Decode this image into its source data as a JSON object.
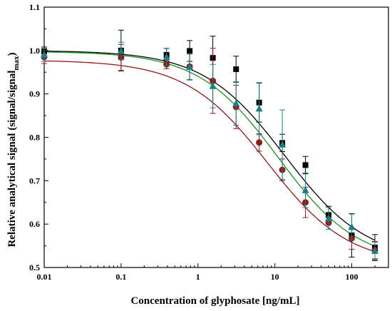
{
  "chart_data": {
    "type": "scatter",
    "xlabel": "Concentration of glyphosate [ng/mL]",
    "ylabel": "Relative analytical signal (signal/signal",
    "ylabel_sub": "max",
    "ylabel_close": ")",
    "xscale": "log",
    "xlim": [
      0.01,
      300
    ],
    "ylim": [
      0.5,
      1.1
    ],
    "xticks": [
      0.01,
      0.1,
      1,
      10,
      100
    ],
    "xtick_labels": [
      "0.01",
      "0.1",
      "1",
      "10",
      "100"
    ],
    "yticks": [
      0.5,
      0.6,
      0.7,
      0.8,
      0.9,
      1.0,
      1.1
    ],
    "ytick_labels": [
      "0.5",
      "0.6",
      "0.7",
      "0.8",
      "0.9",
      "1.0",
      "1.1"
    ],
    "grid": false,
    "series": [
      {
        "marker": "square",
        "color": "#000000",
        "x": [
          0.01,
          0.1,
          0.39,
          0.78,
          1.56,
          3.13,
          6.25,
          12.5,
          25,
          50,
          100,
          200
        ],
        "y": [
          0.998,
          1.0,
          0.99,
          0.999,
          0.983,
          0.957,
          0.88,
          0.787,
          0.736,
          0.621,
          0.574,
          0.546
        ],
        "err": [
          0.01,
          0.047,
          0.015,
          0.024,
          0.05,
          0.03,
          0.045,
          0.02,
          0.02,
          0.02,
          0.05,
          0.03
        ],
        "fit": {
          "top": 1.0,
          "bottom": 0.515,
          "ic50": 13.5,
          "hill": 0.82
        }
      },
      {
        "marker": "circle",
        "color": "#8b1a1a",
        "x": [
          0.01,
          0.1,
          0.39,
          0.78,
          1.56,
          3.13,
          6.25,
          12.5,
          25,
          50,
          100,
          200
        ],
        "y": [
          0.985,
          0.984,
          0.968,
          0.963,
          0.93,
          0.87,
          0.788,
          0.725,
          0.65,
          0.603,
          0.567,
          0.54
        ],
        "err": [
          0.015,
          0.03,
          0.01,
          0.03,
          0.075,
          0.05,
          0.02,
          0.025,
          0.035,
          0.015,
          0.025,
          0.02
        ],
        "fit": {
          "top": 0.978,
          "bottom": 0.505,
          "ic50": 8.0,
          "hill": 0.82
        }
      },
      {
        "marker": "triangle",
        "color": "#1a7f82",
        "x": [
          0.01,
          0.1,
          0.39,
          0.78,
          1.56,
          3.13,
          6.25,
          12.5,
          25,
          50,
          100,
          200
        ],
        "y": [
          0.99,
          0.999,
          0.985,
          0.962,
          0.918,
          0.878,
          0.866,
          0.783,
          0.678,
          0.613,
          0.593,
          0.538
        ],
        "err": [
          0.015,
          0.02,
          0.02,
          0.03,
          0.05,
          0.05,
          0.06,
          0.08,
          0.04,
          0.025,
          0.03,
          0.02
        ],
        "fit_color": "#1f8f1f",
        "fit": {
          "top": 0.998,
          "bottom": 0.51,
          "ic50": 11.0,
          "hill": 0.84
        }
      }
    ]
  }
}
